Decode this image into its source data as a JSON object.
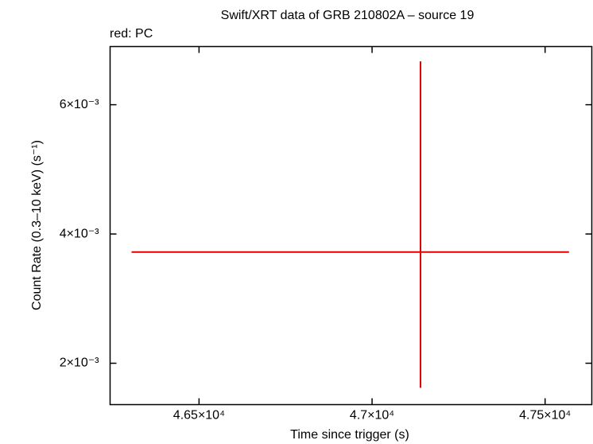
{
  "chart_data": {
    "type": "errorbar",
    "title": "Swift/XRT data of GRB 210802A – source 19",
    "subtitle": "red: PC",
    "x_label": "Time since trigger (s)",
    "y_label": "Count Rate (0.3–10 keV) (s⁻¹)",
    "xlim": [
      46243,
      47635
    ],
    "ylim": [
      0.00136,
      0.0069
    ],
    "xticks": [
      {
        "value": 46500,
        "label": "4.65×10⁴"
      },
      {
        "value": 47000,
        "label": "4.7×10⁴"
      },
      {
        "value": 47500,
        "label": "4.75×10⁴"
      }
    ],
    "yticks": [
      {
        "value": 0.002,
        "label": "2×10⁻³"
      },
      {
        "value": 0.004,
        "label": "4×10⁻³"
      },
      {
        "value": 0.006,
        "label": "6×10⁻³"
      }
    ],
    "series": [
      {
        "color": "#e00000",
        "x": [
          47140
        ],
        "y": [
          0.00372
        ],
        "xerr_minus": [
          835
        ],
        "xerr_plus": [
          429
        ],
        "yerr_minus": [
          0.0021
        ],
        "yerr_plus": [
          0.00295
        ]
      }
    ]
  }
}
